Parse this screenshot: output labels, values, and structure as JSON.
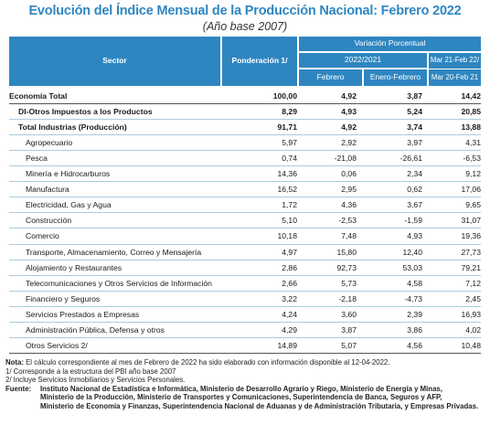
{
  "title": "Evolución del Índice Mensual de la Producción Nacional: Febrero 2022",
  "subtitle": "(Año base 2007)",
  "header": {
    "sector": "Sector",
    "ponderacion": "Ponderación 1/",
    "variacion": "Variación Porcentual",
    "period": "2022/2021",
    "febrero": "Febrero",
    "enero_febrero": "Enero-Febrero",
    "last12_top": "Mar 21-Feb 22/",
    "last12_bottom": "Mar 20-Feb 21"
  },
  "rows": [
    {
      "sector": "Economía Total",
      "pond": "100,00",
      "feb": "4,92",
      "enefeb": "3,87",
      "last12": "14,42"
    },
    {
      "sector": "DI-Otros Impuestos a los Productos",
      "pond": "8,29",
      "feb": "4,93",
      "enefeb": "5,24",
      "last12": "20,85"
    },
    {
      "sector": "Total Industrias (Producción)",
      "pond": "91,71",
      "feb": "4,92",
      "enefeb": "3,74",
      "last12": "13,88"
    },
    {
      "sector": "Agropecuario",
      "pond": "5,97",
      "feb": "2,92",
      "enefeb": "3,97",
      "last12": "4,31"
    },
    {
      "sector": "Pesca",
      "pond": "0,74",
      "feb": "-21,08",
      "enefeb": "-26,61",
      "last12": "-6,53"
    },
    {
      "sector": "Minería e Hidrocarburos",
      "pond": "14,36",
      "feb": "0,06",
      "enefeb": "2,34",
      "last12": "9,12"
    },
    {
      "sector": "Manufactura",
      "pond": "16,52",
      "feb": "2,95",
      "enefeb": "0,62",
      "last12": "17,06"
    },
    {
      "sector": "Electricidad, Gas y Agua",
      "pond": "1,72",
      "feb": "4,36",
      "enefeb": "3,67",
      "last12": "9,65"
    },
    {
      "sector": "Construcción",
      "pond": "5,10",
      "feb": "-2,53",
      "enefeb": "-1,59",
      "last12": "31,07"
    },
    {
      "sector": "Comercio",
      "pond": "10,18",
      "feb": "7,48",
      "enefeb": "4,93",
      "last12": "19,36"
    },
    {
      "sector": "Transporte, Almacenamiento, Correo y Mensajería",
      "pond": "4,97",
      "feb": "15,80",
      "enefeb": "12,40",
      "last12": "27,73"
    },
    {
      "sector": "Alojamiento y Restaurantes",
      "pond": "2,86",
      "feb": "92,73",
      "enefeb": "53,03",
      "last12": "79,21"
    },
    {
      "sector": "Telecomunicaciones y Otros Servicios de Información",
      "pond": "2,66",
      "feb": "5,73",
      "enefeb": "4,58",
      "last12": "7,12"
    },
    {
      "sector": "Financiero y Seguros",
      "pond": "3,22",
      "feb": "-2,18",
      "enefeb": "-4,73",
      "last12": "2,45"
    },
    {
      "sector": "Servicios Prestados a Empresas",
      "pond": "4,24",
      "feb": "3,60",
      "enefeb": "2,39",
      "last12": "16,93"
    },
    {
      "sector": "Administración Pública, Defensa y otros",
      "pond": "4,29",
      "feb": "3,87",
      "enefeb": "3,86",
      "last12": "4,02"
    },
    {
      "sector": "Otros Servicios 2/",
      "pond": "14,89",
      "feb": "5,07",
      "enefeb": "4,56",
      "last12": "10,48"
    }
  ],
  "notes": {
    "nota_label": "Nota:",
    "nota_text": "El cálculo correspondiente al mes de Febrero de 2022 ha sido elaborado con información disponible al 12-04-2022.",
    "note1": "1/ Corresponde a la estructura del PBI año base 2007",
    "note2": "2/ Incluye Servicios Inmobiliarios y Servicios Personales.",
    "fuente_label": "Fuente:",
    "fuente_line1": "Instituto Nacional de Estadística e Informática, Ministerio de Desarrollo Agrario y Riego, Ministerio de Energía y Minas,",
    "fuente_line2": "Ministerio de la Producción, Ministerio de Transportes y Comunicaciones, Superintendencia de Banca, Seguros y AFP,",
    "fuente_line3": "Ministerio de Economía y Finanzas, Superintendencia Nacional de Aduanas y de Administración Tributaria, y Empresas Privadas."
  },
  "colors": {
    "header_bg": "#2e86c1",
    "title": "#2e86c1"
  }
}
